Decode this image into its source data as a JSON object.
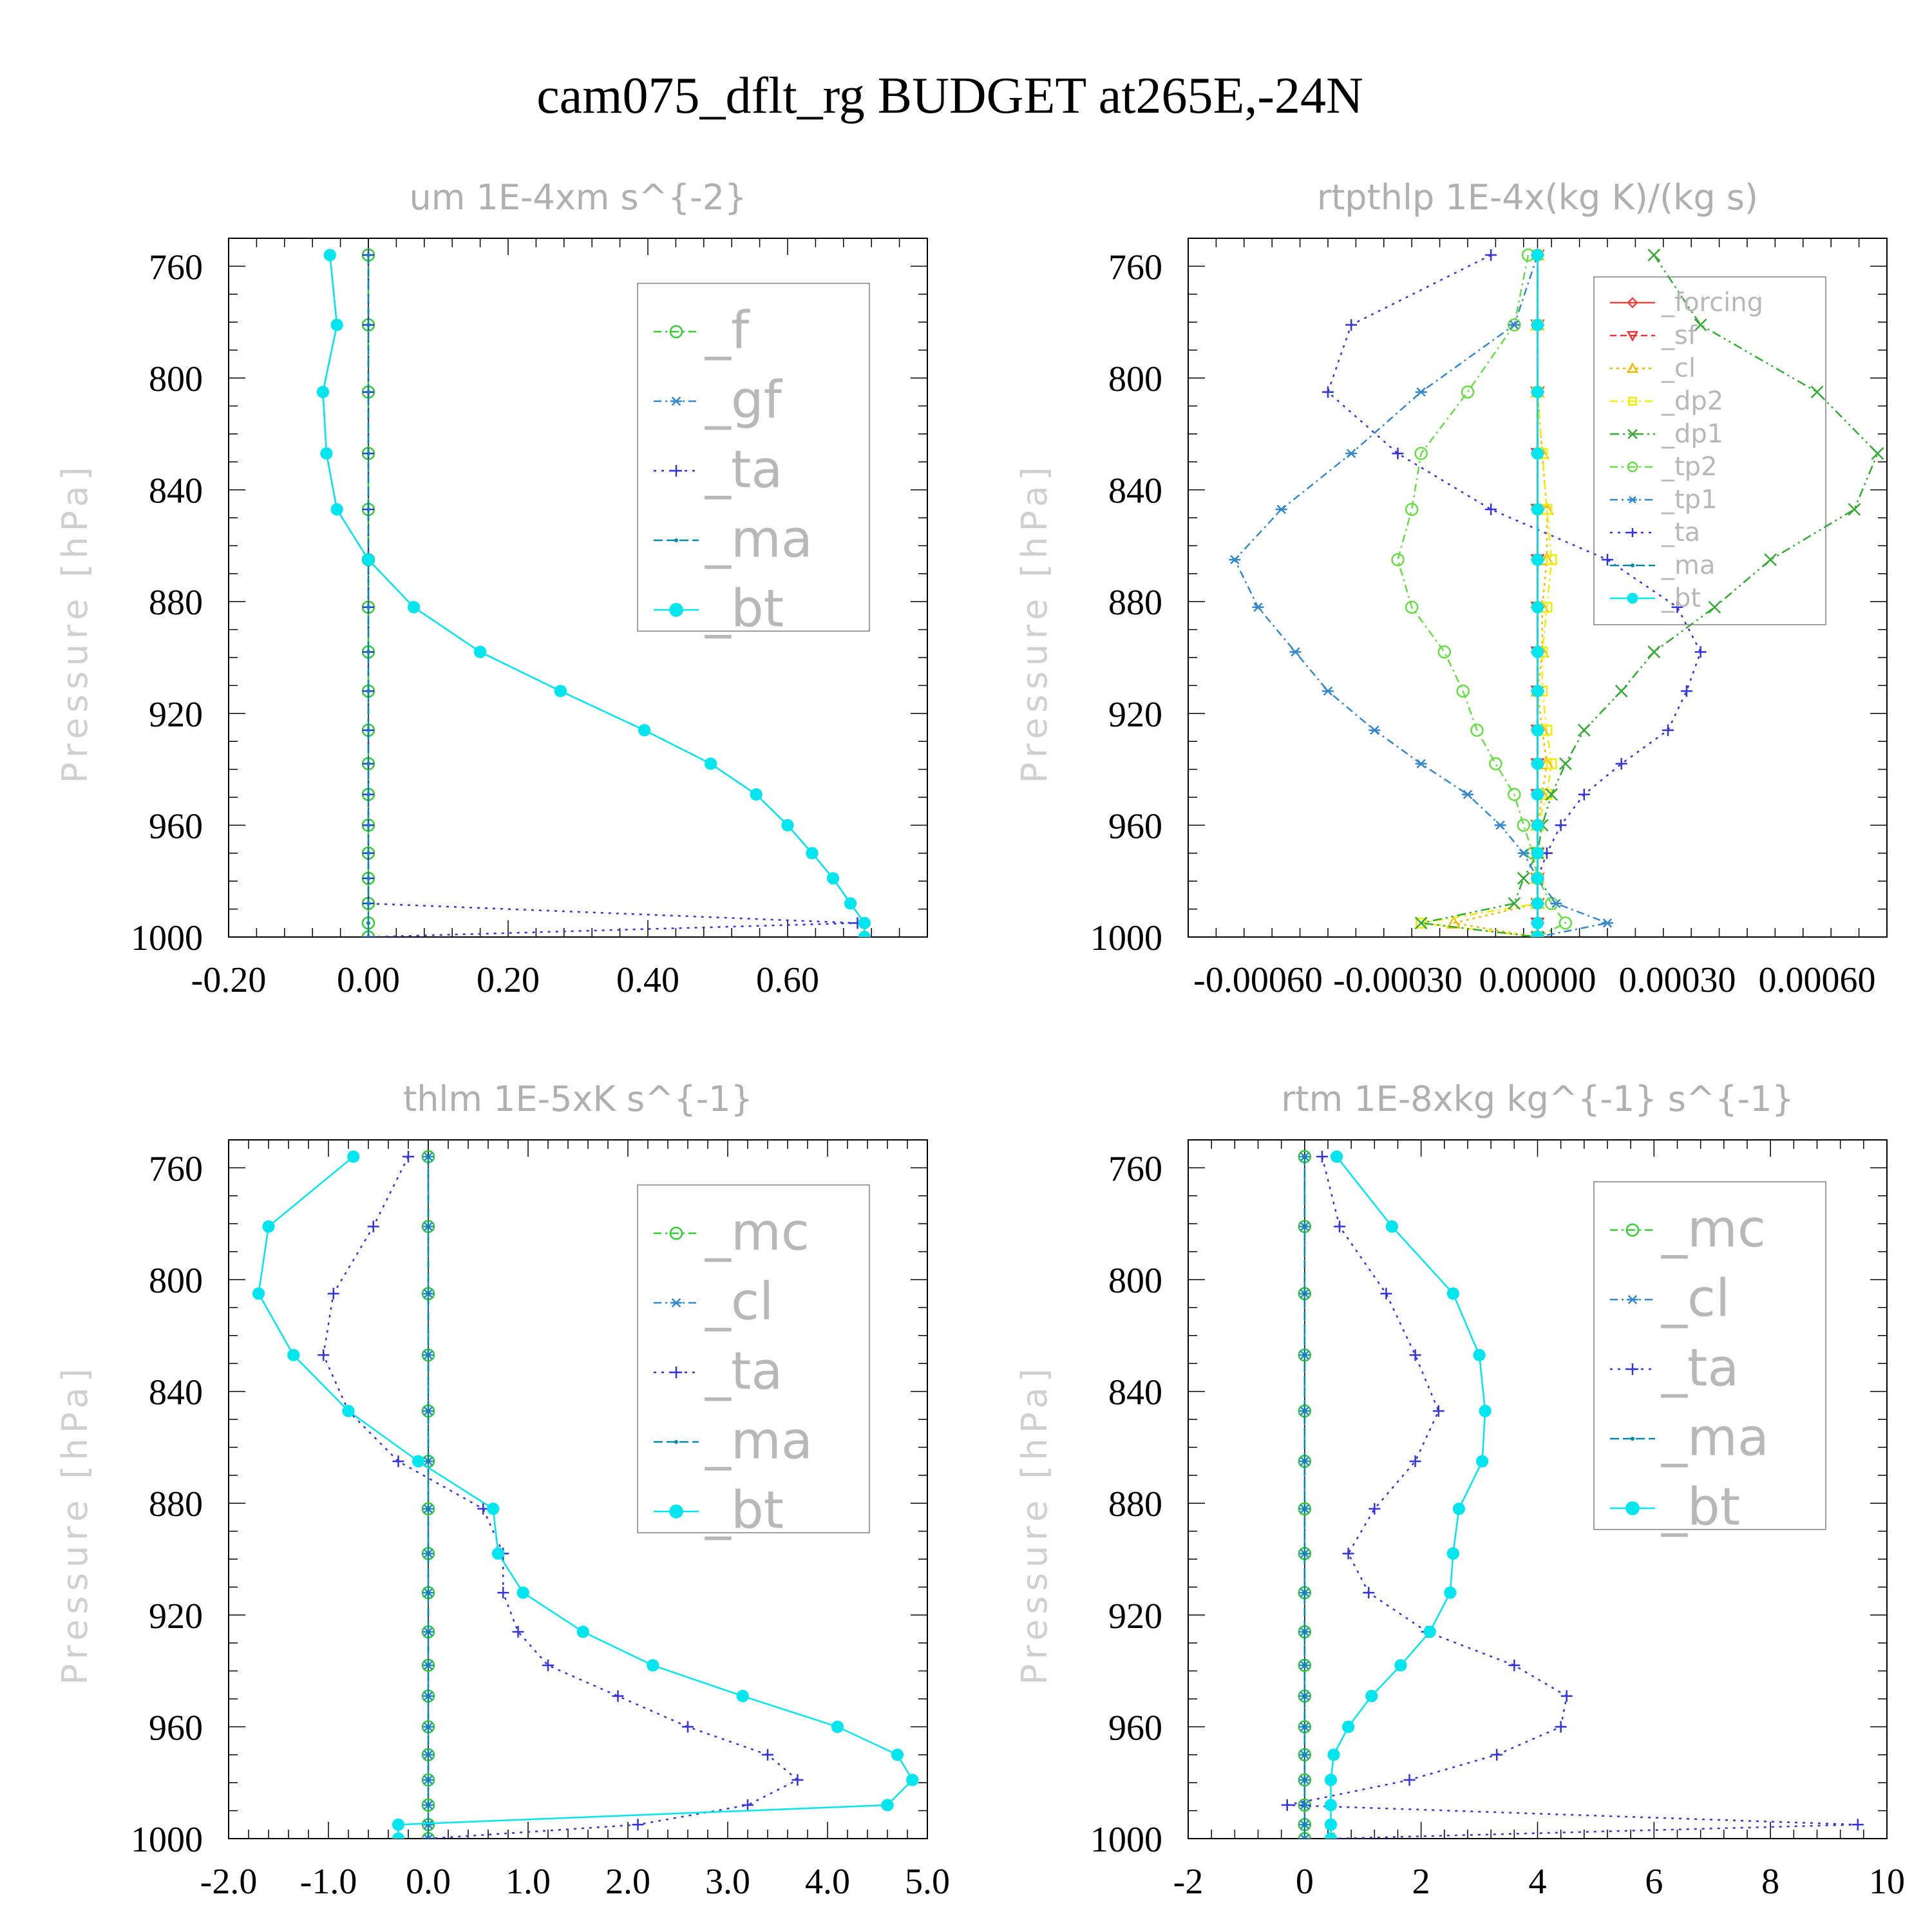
{
  "figure": {
    "title": "cam075_dflt_rg  BUDGET at265E,-24N"
  },
  "chart_data": [
    {
      "id": "um",
      "type": "line",
      "title": "um   1E-4xm s^{-2}",
      "ylabel": "Pressure [hPa]",
      "xlim": [
        -0.2,
        0.8
      ],
      "ylim": [
        1000,
        750
      ],
      "xticks": [
        -0.2,
        0.0,
        0.2,
        0.4,
        0.6
      ],
      "xtick_labels": [
        "-0.20",
        "0.00",
        "0.20",
        "0.40",
        "0.60"
      ],
      "yticks": [
        760,
        800,
        840,
        880,
        920,
        960,
        1000
      ],
      "ytick_labels": [
        "760",
        "800",
        "840",
        "880",
        "920",
        "960",
        "1000"
      ],
      "legend_position": "top-right",
      "y": [
        756,
        781,
        805,
        827,
        847,
        865,
        882,
        898,
        912,
        926,
        938,
        949,
        960,
        970,
        979,
        988,
        995,
        1000
      ],
      "series": [
        {
          "name": "_f",
          "color": "#33cc33",
          "marker": "circle",
          "dash": "12,6,3,6",
          "values": [
            0,
            0,
            0,
            0,
            0,
            0,
            0,
            0,
            0,
            0,
            0,
            0,
            0,
            0,
            0,
            0,
            0,
            0
          ]
        },
        {
          "name": "_gf",
          "color": "#3388cc",
          "marker": "star",
          "dash": "12,6,3,6",
          "values": [
            -0.055,
            -0.045,
            -0.065,
            -0.06,
            -0.045,
            0,
            0.065,
            0.16,
            0.275,
            0.395,
            0.49,
            0.555,
            0.6,
            0.635,
            0.665,
            0.69,
            0.71,
            0.71
          ]
        },
        {
          "name": "_ta",
          "color": "#3333dd",
          "marker": "plus",
          "dash": "4,8",
          "values": [
            0,
            0,
            0,
            0,
            0,
            0,
            0,
            0,
            0,
            0,
            0,
            0,
            0,
            0,
            0,
            0,
            0.7,
            0
          ]
        },
        {
          "name": "_ma",
          "color": "#0088aa",
          "marker": "dot",
          "dash": "14,6",
          "values": [
            0,
            0,
            0,
            0,
            0,
            0,
            0,
            0,
            0,
            0,
            0,
            0,
            0,
            0,
            0,
            0,
            0,
            0
          ]
        },
        {
          "name": "_bt",
          "color": "#00e5ee",
          "marker": "filled",
          "dash": "",
          "values": [
            -0.055,
            -0.045,
            -0.065,
            -0.06,
            -0.045,
            0,
            0.065,
            0.16,
            0.275,
            0.395,
            0.49,
            0.555,
            0.6,
            0.635,
            0.665,
            0.69,
            0.71,
            0.71
          ]
        }
      ]
    },
    {
      "id": "rtpthlp",
      "type": "line",
      "title": "rtpthlp   1E-4x(kg K)/(kg s)",
      "ylabel": "Pressure [hPa]",
      "xlim": [
        -0.00075,
        0.00075
      ],
      "ylim": [
        1000,
        750
      ],
      "xticks": [
        -0.0006,
        -0.0003,
        0.0,
        0.0003,
        0.0006
      ],
      "xtick_labels": [
        "-0.00060",
        "-0.00030",
        "0.00000",
        "0.00030",
        "0.00060"
      ],
      "yticks": [
        760,
        800,
        840,
        880,
        920,
        960,
        1000
      ],
      "ytick_labels": [
        "760",
        "800",
        "840",
        "880",
        "920",
        "960",
        "1000"
      ],
      "legend_position": "top-right",
      "y": [
        756,
        781,
        805,
        827,
        847,
        865,
        882,
        898,
        912,
        926,
        938,
        949,
        960,
        970,
        979,
        988,
        995,
        1000
      ],
      "series": [
        {
          "name": "_forcing",
          "color": "#ee4444",
          "marker": "diamond",
          "dash": "",
          "values": [
            0,
            0,
            0,
            0,
            0,
            0,
            0,
            0,
            0,
            0,
            0,
            0,
            0,
            0,
            0,
            0,
            0,
            0
          ]
        },
        {
          "name": "_sf",
          "color": "#ee3333",
          "marker": "tri-down",
          "dash": "10,6",
          "values": [
            0,
            0,
            0,
            0,
            0,
            0,
            0,
            0,
            0,
            0,
            0,
            0,
            0,
            0,
            0,
            0,
            0,
            0
          ]
        },
        {
          "name": "_cl",
          "color": "#eebb00",
          "marker": "tri-up",
          "dash": "4,6",
          "values": [
            0,
            0,
            0,
            1e-05,
            2e-05,
            2e-05,
            1e-05,
            1e-05,
            0,
            1e-05,
            2e-05,
            1e-05,
            0,
            0,
            0,
            0,
            -0.00018,
            0
          ]
        },
        {
          "name": "_dp2",
          "color": "#eeee00",
          "marker": "square",
          "dash": "12,6,3,6",
          "values": [
            0,
            0,
            0,
            1e-05,
            2e-05,
            3e-05,
            2e-05,
            1e-05,
            1e-05,
            2e-05,
            3e-05,
            2e-05,
            0,
            0,
            0,
            0,
            -0.00025,
            0
          ]
        },
        {
          "name": "_dp1",
          "color": "#33aa33",
          "marker": "cross",
          "dash": "14,6,3,6,3,6",
          "values": [
            0.00025,
            0.00035,
            0.0006,
            0.00073,
            0.00068,
            0.0005,
            0.00038,
            0.00025,
            0.00018,
            0.0001,
            6e-05,
            3e-05,
            1e-05,
            0,
            -3e-05,
            -5e-05,
            -0.00025,
            0
          ]
        },
        {
          "name": "_tp2",
          "color": "#66dd44",
          "marker": "circle",
          "dash": "12,6,3,6",
          "values": [
            -2e-05,
            -5e-05,
            -0.00015,
            -0.00025,
            -0.00027,
            -0.0003,
            -0.00027,
            -0.0002,
            -0.00016,
            -0.00013,
            -9e-05,
            -5e-05,
            -3e-05,
            -1e-05,
            0,
            3e-05,
            6e-05,
            0
          ]
        },
        {
          "name": "_tp1",
          "color": "#3388cc",
          "marker": "star",
          "dash": "12,6,3,6",
          "values": [
            0,
            -5e-05,
            -0.00025,
            -0.0004,
            -0.00055,
            -0.00065,
            -0.0006,
            -0.00052,
            -0.00045,
            -0.00035,
            -0.00025,
            -0.00015,
            -8e-05,
            -3e-05,
            0,
            4e-05,
            0.00015,
            0
          ]
        },
        {
          "name": "_ta",
          "color": "#3333dd",
          "marker": "plus",
          "dash": "4,8",
          "values": [
            -0.0001,
            -0.0004,
            -0.00045,
            -0.0003,
            -0.0001,
            0.00015,
            0.0003,
            0.00035,
            0.00032,
            0.00028,
            0.00018,
            0.0001,
            5e-05,
            2e-05,
            0,
            0,
            0,
            0
          ]
        },
        {
          "name": "_ma",
          "color": "#0088aa",
          "marker": "dot",
          "dash": "14,6",
          "values": [
            0,
            0,
            0,
            0,
            0,
            0,
            0,
            0,
            0,
            0,
            0,
            0,
            0,
            0,
            0,
            0,
            0,
            0
          ]
        },
        {
          "name": "_bt",
          "color": "#00e5ee",
          "marker": "filled",
          "dash": "",
          "values": [
            0,
            0,
            0,
            0,
            0,
            0,
            0,
            0,
            0,
            0,
            0,
            0,
            0,
            0,
            0,
            0,
            0,
            0
          ]
        }
      ]
    },
    {
      "id": "thlm",
      "type": "line",
      "title": "thlm   1E-5xK s^{-1}",
      "ylabel": "Pressure [hPa]",
      "xlim": [
        -2.0,
        5.0
      ],
      "ylim": [
        1000,
        750
      ],
      "xticks": [
        -2.0,
        -1.0,
        0.0,
        1.0,
        2.0,
        3.0,
        4.0,
        5.0
      ],
      "xtick_labels": [
        "-2.0",
        "-1.0",
        "0.0",
        "1.0",
        "2.0",
        "3.0",
        "4.0",
        "5.0"
      ],
      "yticks": [
        760,
        800,
        840,
        880,
        920,
        960,
        1000
      ],
      "ytick_labels": [
        "760",
        "800",
        "840",
        "880",
        "920",
        "960",
        "1000"
      ],
      "legend_position": "top-right",
      "y": [
        756,
        781,
        805,
        827,
        847,
        865,
        882,
        898,
        912,
        926,
        938,
        949,
        960,
        970,
        979,
        988,
        995,
        1000
      ],
      "series": [
        {
          "name": "_mc",
          "color": "#33cc33",
          "marker": "circle",
          "dash": "12,6,3,6",
          "values": [
            0,
            0,
            0,
            0,
            0,
            0,
            0,
            0,
            0,
            0,
            0,
            0,
            0,
            0,
            0,
            0,
            0,
            0
          ]
        },
        {
          "name": "_cl",
          "color": "#3388cc",
          "marker": "star",
          "dash": "12,6,3,6",
          "values": [
            0,
            0,
            0,
            0,
            0,
            0,
            0,
            0,
            0,
            0,
            0,
            0,
            0,
            0,
            0,
            0,
            0,
            0
          ]
        },
        {
          "name": "_ta",
          "color": "#3333dd",
          "marker": "plus",
          "dash": "4,8",
          "values": [
            -0.2,
            -0.55,
            -0.95,
            -1.05,
            -0.8,
            -0.3,
            0.55,
            0.75,
            0.75,
            0.9,
            1.2,
            1.9,
            2.6,
            3.4,
            3.7,
            3.2,
            2.1,
            0
          ]
        },
        {
          "name": "_ma",
          "color": "#0088aa",
          "marker": "dot",
          "dash": "14,6",
          "values": [
            0,
            0,
            0,
            0,
            0,
            0,
            0,
            0,
            0,
            0,
            0,
            0,
            0,
            0,
            0,
            0,
            0,
            0
          ]
        },
        {
          "name": "_bt",
          "color": "#00e5ee",
          "marker": "filled",
          "dash": "",
          "values": [
            -0.75,
            -1.6,
            -1.7,
            -1.35,
            -0.8,
            -0.1,
            0.65,
            0.7,
            0.95,
            1.55,
            2.25,
            3.15,
            4.1,
            4.7,
            4.85,
            4.6,
            -0.3,
            -0.3
          ]
        }
      ]
    },
    {
      "id": "rtm",
      "type": "line",
      "title": "rtm   1E-8xkg kg^{-1} s^{-1}",
      "ylabel": "Pressure [hPa]",
      "xlim": [
        -2,
        10
      ],
      "ylim": [
        1000,
        750
      ],
      "xticks": [
        -2,
        0,
        2,
        4,
        6,
        8,
        10
      ],
      "xtick_labels": [
        "-2",
        "0",
        "2",
        "4",
        "6",
        "8",
        "10"
      ],
      "yticks": [
        760,
        800,
        840,
        880,
        920,
        960,
        1000
      ],
      "ytick_labels": [
        "760",
        "800",
        "840",
        "880",
        "920",
        "960",
        "1000"
      ],
      "legend_position": "top-right",
      "y": [
        756,
        781,
        805,
        827,
        847,
        865,
        882,
        898,
        912,
        926,
        938,
        949,
        960,
        970,
        979,
        988,
        995,
        1000
      ],
      "series": [
        {
          "name": "_mc",
          "color": "#33cc33",
          "marker": "circle",
          "dash": "12,6,3,6",
          "values": [
            0,
            0,
            0,
            0,
            0,
            0,
            0,
            0,
            0,
            0,
            0,
            0,
            0,
            0,
            0,
            0,
            0,
            0
          ]
        },
        {
          "name": "_cl",
          "color": "#3388cc",
          "marker": "star",
          "dash": "12,6,3,6",
          "values": [
            0,
            0,
            0,
            0,
            0,
            0,
            0,
            0,
            0,
            0,
            0,
            0,
            0,
            0,
            0,
            0,
            0,
            0
          ]
        },
        {
          "name": "_ta",
          "color": "#3333dd",
          "marker": "plus",
          "dash": "4,8",
          "values": [
            0.3,
            0.6,
            1.4,
            1.9,
            2.3,
            1.9,
            1.2,
            0.75,
            1.1,
            2.1,
            3.6,
            4.5,
            4.4,
            3.3,
            1.8,
            -0.3,
            9.5,
            0.5
          ]
        },
        {
          "name": "_ma",
          "color": "#0088aa",
          "marker": "dot",
          "dash": "14,6",
          "values": [
            0,
            0,
            0,
            0,
            0,
            0,
            0,
            0,
            0,
            0,
            0,
            0,
            0,
            0,
            0,
            0,
            0,
            0
          ]
        },
        {
          "name": "_bt",
          "color": "#00e5ee",
          "marker": "filled",
          "dash": "",
          "values": [
            0.55,
            1.5,
            2.55,
            3.0,
            3.1,
            3.05,
            2.65,
            2.55,
            2.5,
            2.15,
            1.65,
            1.15,
            0.75,
            0.5,
            0.45,
            0.45,
            0.45,
            0.45
          ]
        }
      ]
    }
  ]
}
